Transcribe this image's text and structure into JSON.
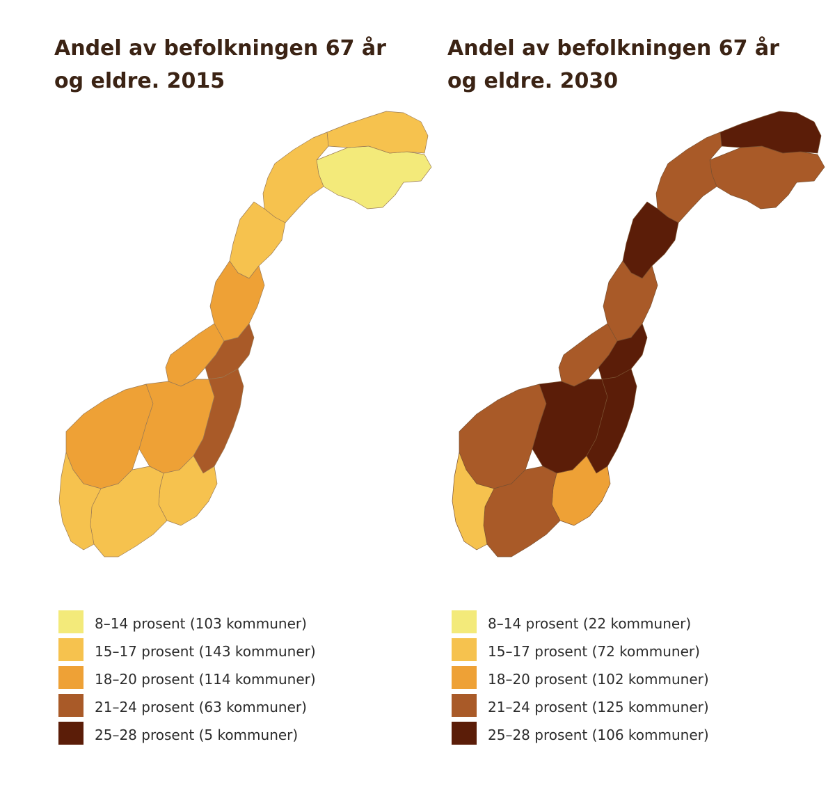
{
  "colors": {
    "c1": "#f3ea7a",
    "c2": "#f6c24e",
    "c3": "#eea136",
    "c4": "#a95a28",
    "c5": "#5b1d08"
  },
  "maps": [
    {
      "title": "Andel av befolkningen 67 år og eldre. 2015",
      "year": 2015,
      "regions": {
        "finnmark_east": "c1",
        "finnmark_coast": "c2",
        "troms": "c2",
        "nordland_north": "c2",
        "nordland_south": "c3",
        "trondelag": "c3",
        "trondelag_inland": "c4",
        "vestland": "c3",
        "innlandet": "c3",
        "innlandet_east": "c4",
        "oslofjord": "c2",
        "sorlandet": "c2",
        "rogaland": "c2"
      },
      "legend": [
        {
          "label": "8–14 prosent (103 kommuner)",
          "color_key": "c1"
        },
        {
          "label": "15–17 prosent (143 kommuner)",
          "color_key": "c2"
        },
        {
          "label": "18–20 prosent (114 kommuner)",
          "color_key": "c3"
        },
        {
          "label": "21–24 prosent (63 kommuner)",
          "color_key": "c4"
        },
        {
          "label": "25–28 prosent (5 kommuner)",
          "color_key": "c5"
        }
      ]
    },
    {
      "title": "Andel av befolkningen 67 år og eldre. 2030",
      "year": 2030,
      "regions": {
        "finnmark_east": "c4",
        "finnmark_coast": "c5",
        "troms": "c4",
        "nordland_north": "c5",
        "nordland_south": "c4",
        "trondelag": "c4",
        "trondelag_inland": "c5",
        "vestland": "c4",
        "innlandet": "c5",
        "innlandet_east": "c5",
        "oslofjord": "c3",
        "sorlandet": "c4",
        "rogaland": "c2"
      },
      "legend": [
        {
          "label": "8–14 prosent (22 kommuner)",
          "color_key": "c1"
        },
        {
          "label": "15–17 prosent (72 kommuner)",
          "color_key": "c2"
        },
        {
          "label": "18–20 prosent (102 kommuner)",
          "color_key": "c3"
        },
        {
          "label": "21–24 prosent (125 kommuner)",
          "color_key": "c4"
        },
        {
          "label": "25–28 prosent (106 kommuner)",
          "color_key": "c5"
        }
      ]
    }
  ]
}
